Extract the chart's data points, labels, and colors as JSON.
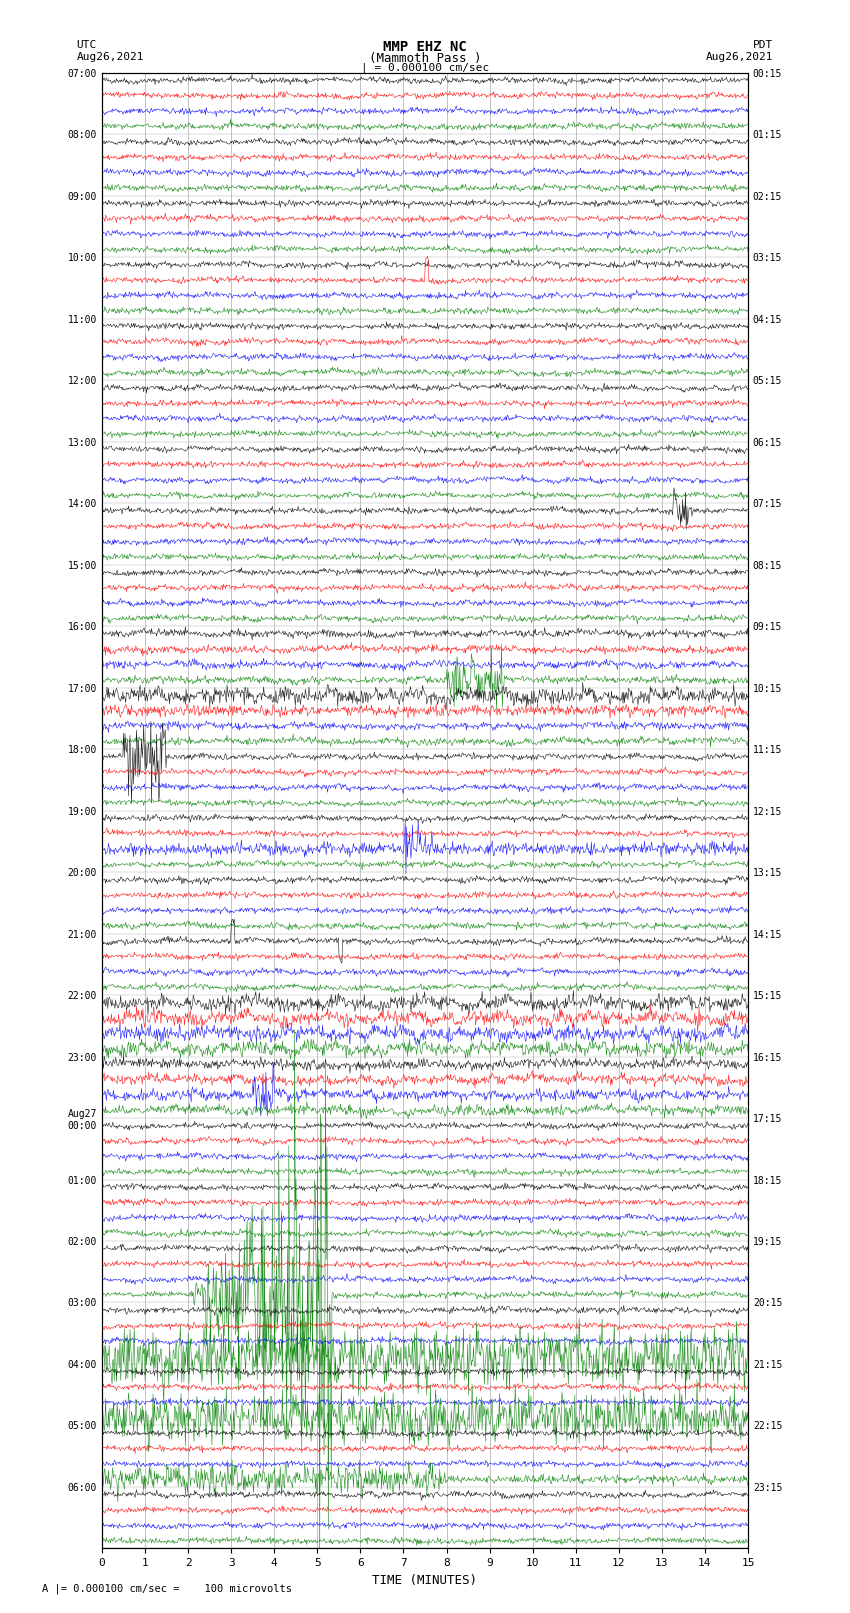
{
  "title_line1": "MMP EHZ NC",
  "title_line2": "(Mammoth Pass )",
  "title_scale": "| = 0.000100 cm/sec",
  "left_label_top": "UTC",
  "left_label_date": "Aug26,2021",
  "right_label_top": "PDT",
  "right_label_date": "Aug26,2021",
  "bottom_note": "A |= 0.000100 cm/sec =    100 microvolts",
  "xlabel": "TIME (MINUTES)",
  "utc_labels": [
    "07:00",
    "08:00",
    "09:00",
    "10:00",
    "11:00",
    "12:00",
    "13:00",
    "14:00",
    "15:00",
    "16:00",
    "17:00",
    "18:00",
    "19:00",
    "20:00",
    "21:00",
    "22:00",
    "23:00",
    "Aug27\n00:00",
    "01:00",
    "02:00",
    "03:00",
    "04:00",
    "05:00",
    "06:00"
  ],
  "pdt_labels": [
    "00:15",
    "01:15",
    "02:15",
    "03:15",
    "04:15",
    "05:15",
    "06:15",
    "07:15",
    "08:15",
    "09:15",
    "10:15",
    "11:15",
    "12:15",
    "13:15",
    "14:15",
    "15:15",
    "16:15",
    "17:15",
    "18:15",
    "19:15",
    "20:15",
    "21:15",
    "22:15",
    "23:15"
  ],
  "n_rows": 24,
  "n_traces_per_row": 4,
  "trace_colors": [
    "black",
    "red",
    "blue",
    "green"
  ],
  "bg_color": "white",
  "grid_color": "#aaaaaa",
  "xmin": 0,
  "xmax": 15,
  "xticks": [
    0,
    1,
    2,
    3,
    4,
    5,
    6,
    7,
    8,
    9,
    10,
    11,
    12,
    13,
    14,
    15
  ]
}
